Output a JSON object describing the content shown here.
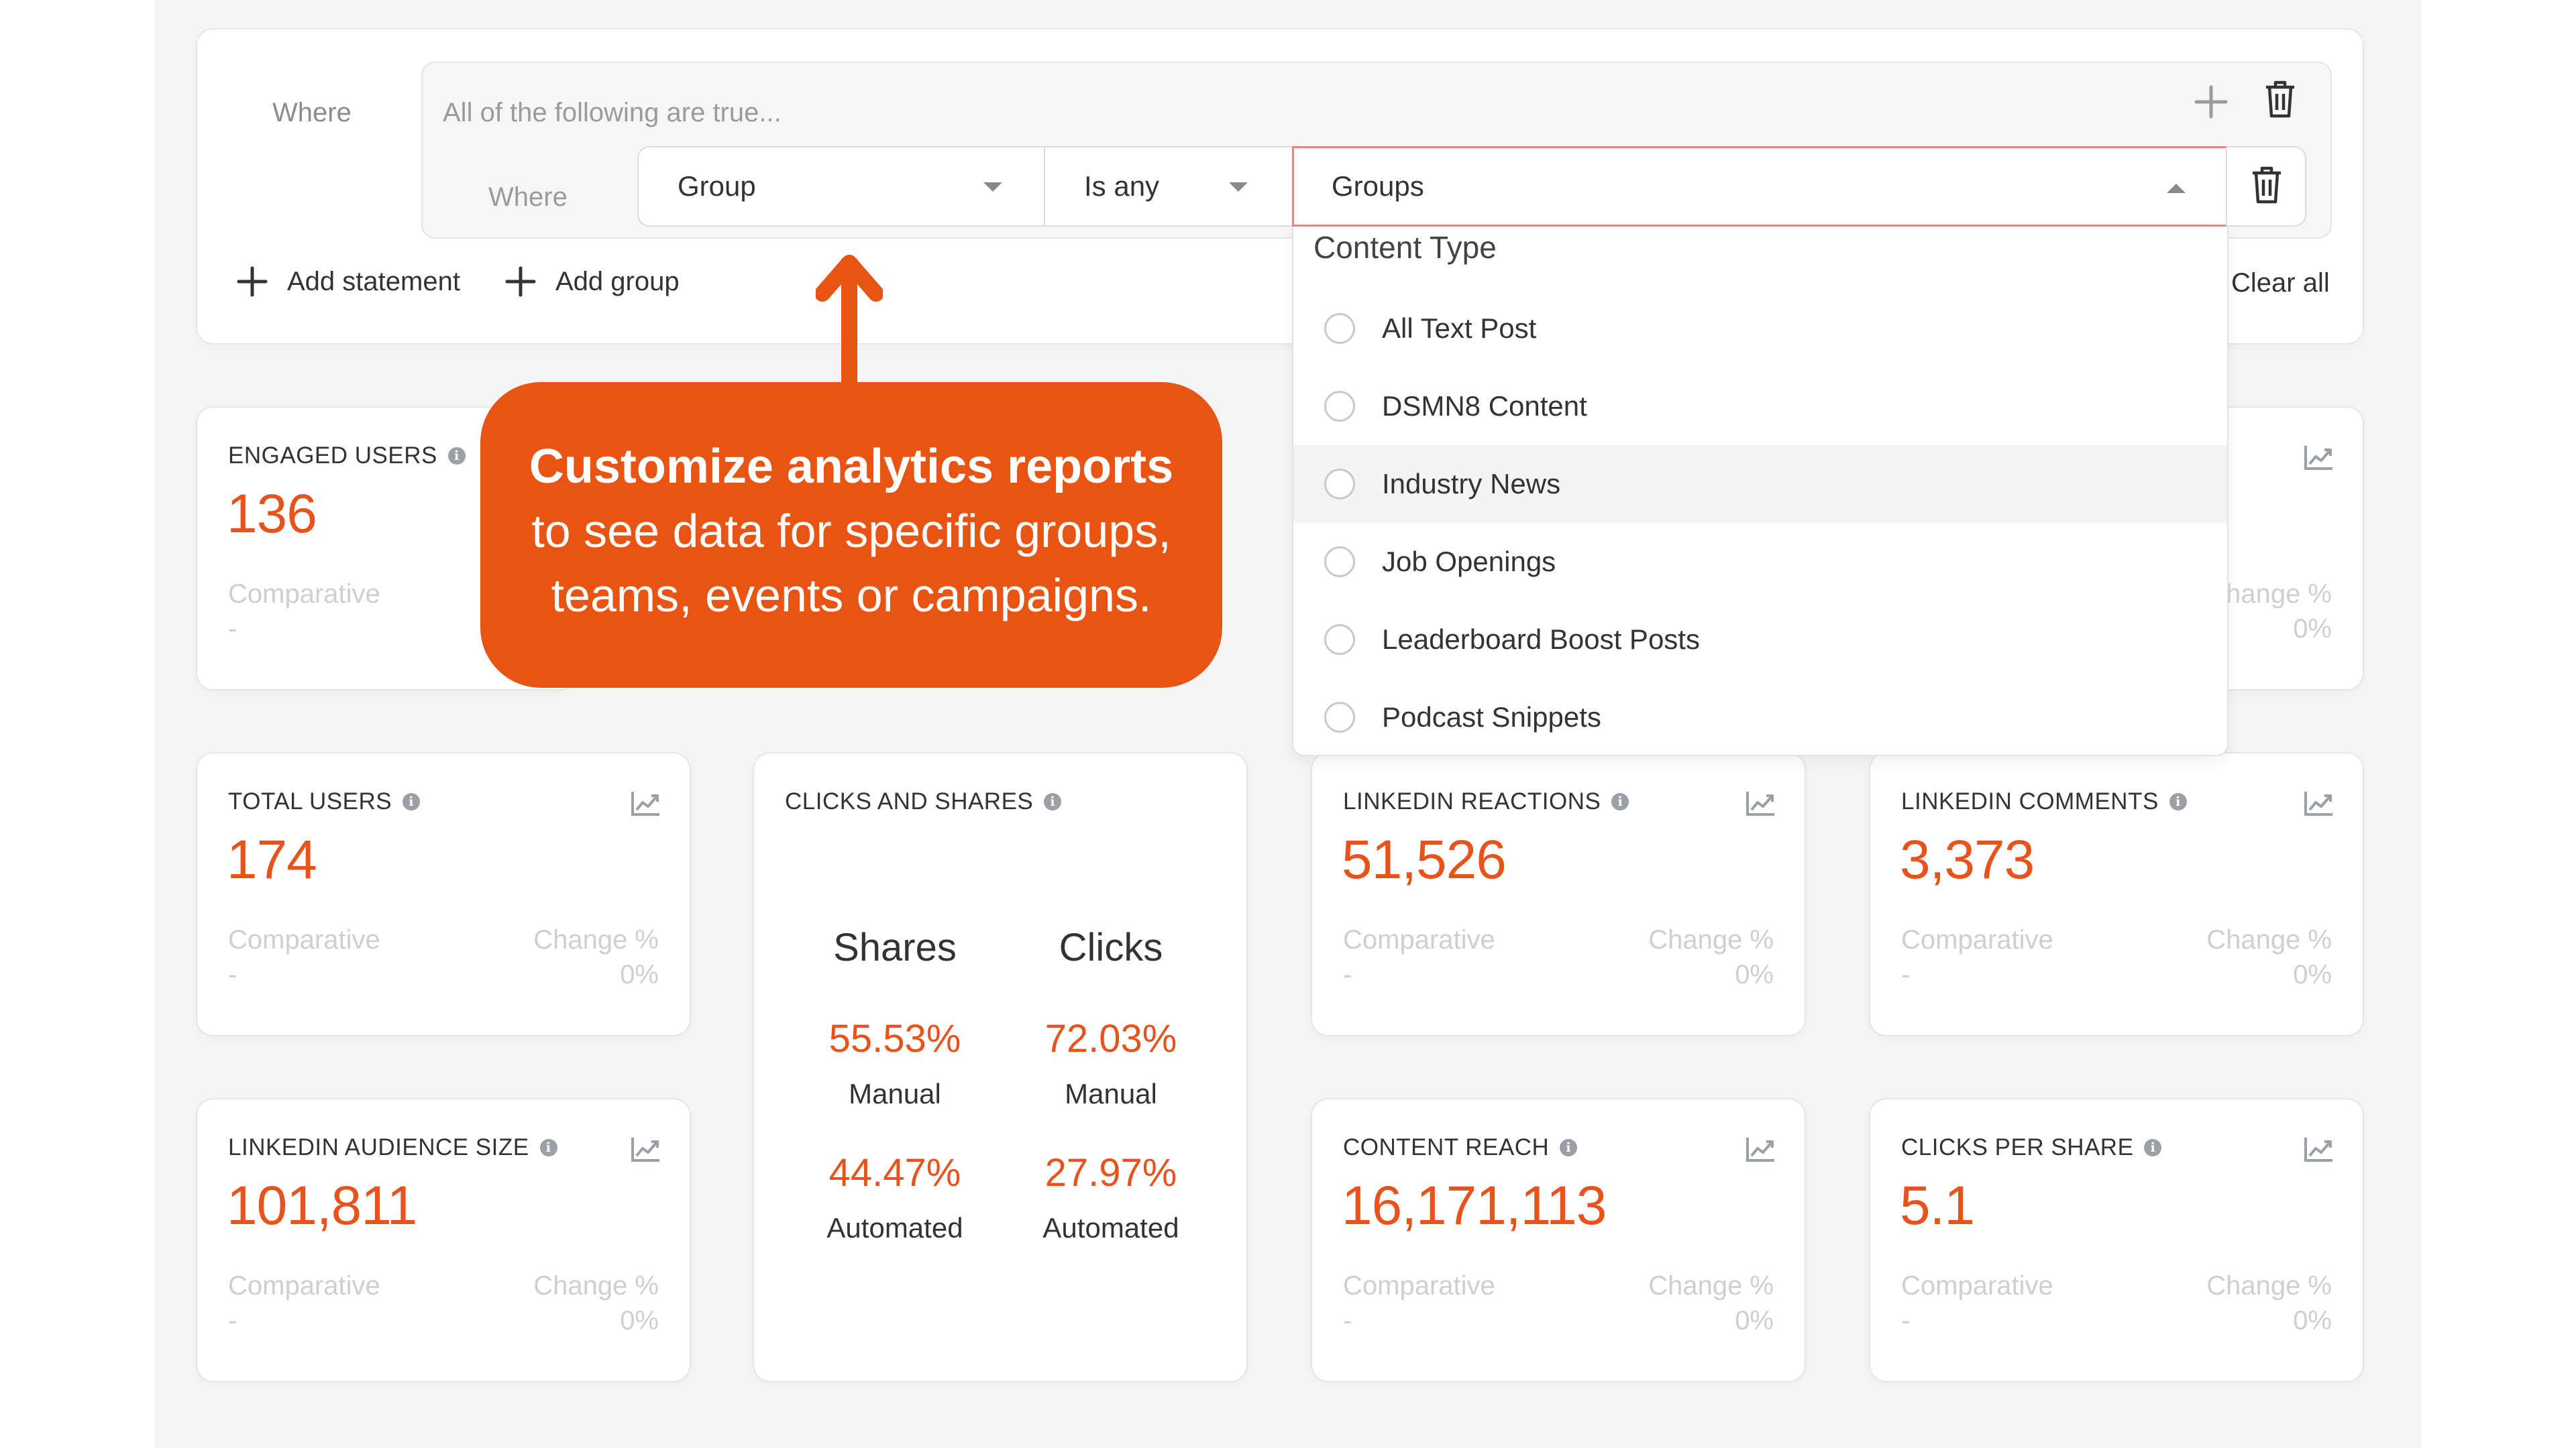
{
  "filter": {
    "where_label": "Where",
    "group_placeholder": "All of the following are true...",
    "sub_where_label": "Where",
    "field_value": "Group",
    "operator_value": "Is any",
    "value_select": "Groups",
    "add_statement": "Add statement",
    "add_group": "Add group",
    "clear_all": "Clear all"
  },
  "dropdown": {
    "section_title": "Content Type",
    "options": [
      {
        "label": "All Text Post",
        "checked": false
      },
      {
        "label": "DSMN8 Content",
        "checked": false
      },
      {
        "label": "Industry News",
        "checked": false
      },
      {
        "label": "Job Openings",
        "checked": false
      },
      {
        "label": "Leaderboard Boost Posts",
        "checked": false
      },
      {
        "label": "Podcast Snippets",
        "checked": false
      }
    ]
  },
  "callout": {
    "title": "Customize analytics reports",
    "body_line1": "to see data for specific groups,",
    "body_line2": "teams, events or campaigns."
  },
  "cards": {
    "engaged_users": {
      "label": "ENGAGED USERS",
      "value": "136",
      "comparative": "Comparative",
      "comparative_value": "-"
    },
    "hidden_right": {
      "change": "hange %",
      "change_value": "0%"
    },
    "total_users": {
      "label": "TOTAL USERS",
      "value": "174",
      "comparative": "Comparative",
      "comparative_value": "-",
      "change": "Change %",
      "change_value": "0%"
    },
    "linkedin_reactions": {
      "label": "LINKEDIN REACTIONS",
      "value": "51,526",
      "comparative": "Comparative",
      "comparative_value": "-",
      "change": "Change %",
      "change_value": "0%"
    },
    "linkedin_comments": {
      "label": "LINKEDIN COMMENTS",
      "value": "3,373",
      "comparative": "Comparative",
      "comparative_value": "-",
      "change": "Change %",
      "change_value": "0%"
    },
    "linkedin_audience": {
      "label": "LINKEDIN AUDIENCE SIZE",
      "value": "101,811",
      "comparative": "Comparative",
      "comparative_value": "-",
      "change": "Change %",
      "change_value": "0%"
    },
    "content_reach": {
      "label": "CONTENT REACH",
      "value": "16,171,113",
      "comparative": "Comparative",
      "comparative_value": "-",
      "change": "Change %",
      "change_value": "0%"
    },
    "clicks_per_share": {
      "label": "CLICKS PER SHARE",
      "value": "5.1",
      "comparative": "Comparative",
      "comparative_value": "-",
      "change": "Change %",
      "change_value": "0%"
    },
    "clicks_and_shares": {
      "label": "CLICKS AND SHARES",
      "shares": {
        "title": "Shares",
        "manual_pct": "55.53%",
        "manual_label": "Manual",
        "auto_pct": "44.47%",
        "auto_label": "Automated"
      },
      "clicks": {
        "title": "Clicks",
        "manual_pct": "72.03%",
        "manual_label": "Manual",
        "auto_pct": "27.97%",
        "auto_label": "Automated"
      }
    }
  },
  "icons": [
    "plus-icon",
    "trash-icon",
    "chevron-down-icon",
    "chevron-up-icon",
    "info-icon",
    "trend-chart-icon",
    "arrow-up-icon"
  ],
  "colors": {
    "accent": "#e8531c",
    "callout": "#e85413",
    "muted": "#cfcfd2",
    "selected_border": "#e9877a"
  }
}
